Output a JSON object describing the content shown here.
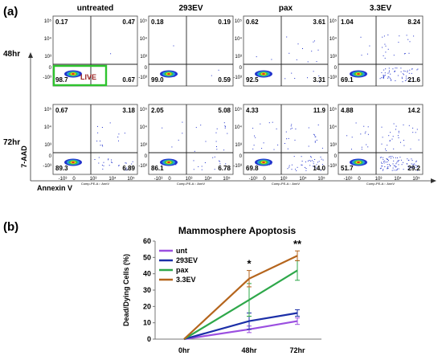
{
  "figure": {
    "panel_a_label": "(a)",
    "panel_b_label": "(b)",
    "live_label": "LIVE",
    "x_axis_label": "Annexin V",
    "y_axis_label": "7-AAD",
    "plot_x_name": "Comp-PE-A :: AnnV"
  },
  "flow": {
    "conditions": [
      "untreated",
      "293EV",
      "pax",
      "3.3EV"
    ],
    "timepoints": [
      "48hr",
      "72hr"
    ],
    "y_ticks": [
      "10⁵",
      "10⁴",
      "10³",
      "0",
      "-10³"
    ],
    "x_ticks": [
      "-10³",
      "0",
      "10³",
      "10⁴",
      "10⁵"
    ],
    "quadrants": [
      [
        {
          "ul": "0.17",
          "ur": "0.47",
          "ll": "98.7",
          "lr": "0.67"
        },
        {
          "ul": "0.18",
          "ur": "0.19",
          "ll": "99.0",
          "lr": "0.59"
        },
        {
          "ul": "0.62",
          "ur": "3.61",
          "ll": "92.5",
          "lr": "3.31"
        },
        {
          "ul": "1.04",
          "ur": "8.24",
          "ll": "69.1",
          "lr": "21.6"
        }
      ],
      [
        {
          "ul": "0.67",
          "ur": "3.18",
          "ll": "89.3",
          "lr": "6.89"
        },
        {
          "ul": "2.05",
          "ur": "5.08",
          "ll": "86.1",
          "lr": "6.78"
        },
        {
          "ul": "4.33",
          "ur": "11.9",
          "ll": "69.8",
          "lr": "14.0"
        },
        {
          "ul": "4.88",
          "ur": "14.2",
          "ll": "51.7",
          "lr": "29.2"
        }
      ]
    ]
  },
  "chart_data": {
    "type": "line",
    "title": "Mammosphere Apoptosis",
    "xlabel": "",
    "ylabel": "Dead/Dying Cells (%)",
    "categories": [
      "0hr",
      "48hr",
      "72hr"
    ],
    "ylim": [
      0,
      60
    ],
    "yticks": [
      0,
      10,
      20,
      30,
      40,
      50,
      60
    ],
    "legend_position": "top-left",
    "series": [
      {
        "name": "unt",
        "color": "#9b4fe0",
        "values": [
          0,
          6,
          11
        ],
        "errors": [
          0,
          2,
          2
        ]
      },
      {
        "name": "293EV",
        "color": "#1c2fa8",
        "values": [
          0,
          11,
          16
        ],
        "errors": [
          0,
          5,
          2
        ]
      },
      {
        "name": "pax",
        "color": "#2ea84a",
        "values": [
          0,
          24,
          42
        ],
        "errors": [
          0,
          10,
          6
        ]
      },
      {
        "name": "3.3EV",
        "color": "#b5651d",
        "values": [
          0,
          37,
          51
        ],
        "errors": [
          0,
          5,
          3
        ]
      }
    ],
    "annotations": [
      {
        "category": "48hr",
        "text": "*"
      },
      {
        "category": "72hr",
        "text": "**"
      }
    ]
  },
  "colors": {
    "gate_box": "#2ec42e",
    "dots": "#2233cc"
  }
}
